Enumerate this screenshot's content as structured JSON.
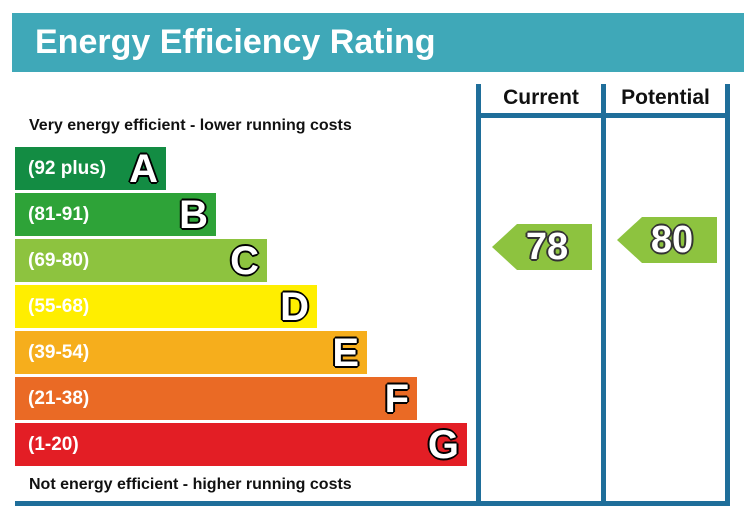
{
  "chart_data": {
    "type": "bar",
    "title": "Energy Efficiency Rating",
    "top_note": "Very energy efficient - lower running costs",
    "bottom_note": "Not energy efficient - higher running costs",
    "bands": [
      {
        "letter": "A",
        "range": "(92 plus)",
        "color": "#138c43"
      },
      {
        "letter": "B",
        "range": "(81-91)",
        "color": "#2ea338"
      },
      {
        "letter": "C",
        "range": "(69-80)",
        "color": "#8dc33f"
      },
      {
        "letter": "D",
        "range": "(55-68)",
        "color": "#ffee00"
      },
      {
        "letter": "E",
        "range": "(39-54)",
        "color": "#f6ae1c"
      },
      {
        "letter": "F",
        "range": "(21-38)",
        "color": "#ea6a25"
      },
      {
        "letter": "G",
        "range": "(1-20)",
        "color": "#e31e25"
      }
    ],
    "columns": {
      "current": "Current",
      "potential": "Potential"
    },
    "current": {
      "value": "78",
      "band": "C",
      "color": "#8dc33f"
    },
    "potential": {
      "value": "80",
      "band": "C",
      "color": "#8dc33f"
    }
  }
}
